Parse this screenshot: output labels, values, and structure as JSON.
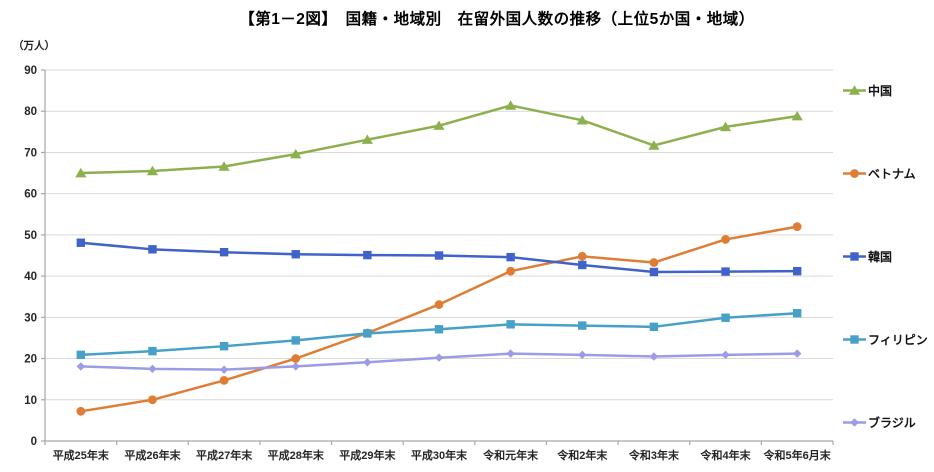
{
  "title": "【第1－2図】　国籍・地域別　在留外国人数の推移（上位5か国・地域）",
  "unit_label": "（万人）",
  "chart_data": {
    "type": "line",
    "title": "【第1－2図】　国籍・地域別　在留外国人数の推移（上位5か国・地域）",
    "ylabel": "（万人）",
    "xlabel": "",
    "ylim": [
      0,
      90
    ],
    "ytick_interval": 10,
    "grid": true,
    "legend_position": "right",
    "categories": [
      "平成25年末",
      "平成26年末",
      "平成27年末",
      "平成28年末",
      "平成29年末",
      "平成30年末",
      "令和元年末",
      "令和2年末",
      "令和3年末",
      "令和4年末",
      "令和5年6月末"
    ],
    "series": [
      {
        "id": "china",
        "name": "中国",
        "color": "#8CB04E",
        "marker": "triangle",
        "values": [
          65.0,
          65.5,
          66.6,
          69.6,
          73.1,
          76.5,
          81.4,
          77.8,
          71.7,
          76.2,
          78.8
        ]
      },
      {
        "id": "vietnam",
        "name": "ベトナム",
        "color": "#DE7E36",
        "marker": "circle",
        "values": [
          7.2,
          10.0,
          14.7,
          20.0,
          26.2,
          33.1,
          41.2,
          44.8,
          43.3,
          48.9,
          52.0
        ]
      },
      {
        "id": "korea",
        "name": "韓国",
        "color": "#4163C9",
        "marker": "square",
        "values": [
          48.1,
          46.5,
          45.8,
          45.3,
          45.1,
          45.0,
          44.6,
          42.7,
          41.0,
          41.1,
          41.2
        ]
      },
      {
        "id": "philippines",
        "name": "フィリピン",
        "color": "#46A0C8",
        "marker": "square",
        "values": [
          20.9,
          21.8,
          23.0,
          24.4,
          26.1,
          27.1,
          28.3,
          28.0,
          27.7,
          29.9,
          31.0
        ]
      },
      {
        "id": "brazil",
        "name": "ブラジル",
        "color": "#9B9BE6",
        "marker": "diamond",
        "values": [
          18.1,
          17.5,
          17.3,
          18.1,
          19.1,
          20.2,
          21.2,
          20.9,
          20.5,
          20.9,
          21.2
        ]
      }
    ],
    "colors": {
      "gridline": "#D9D9D9",
      "axis": "#A6A6A6",
      "tick_label": "#262626"
    }
  }
}
